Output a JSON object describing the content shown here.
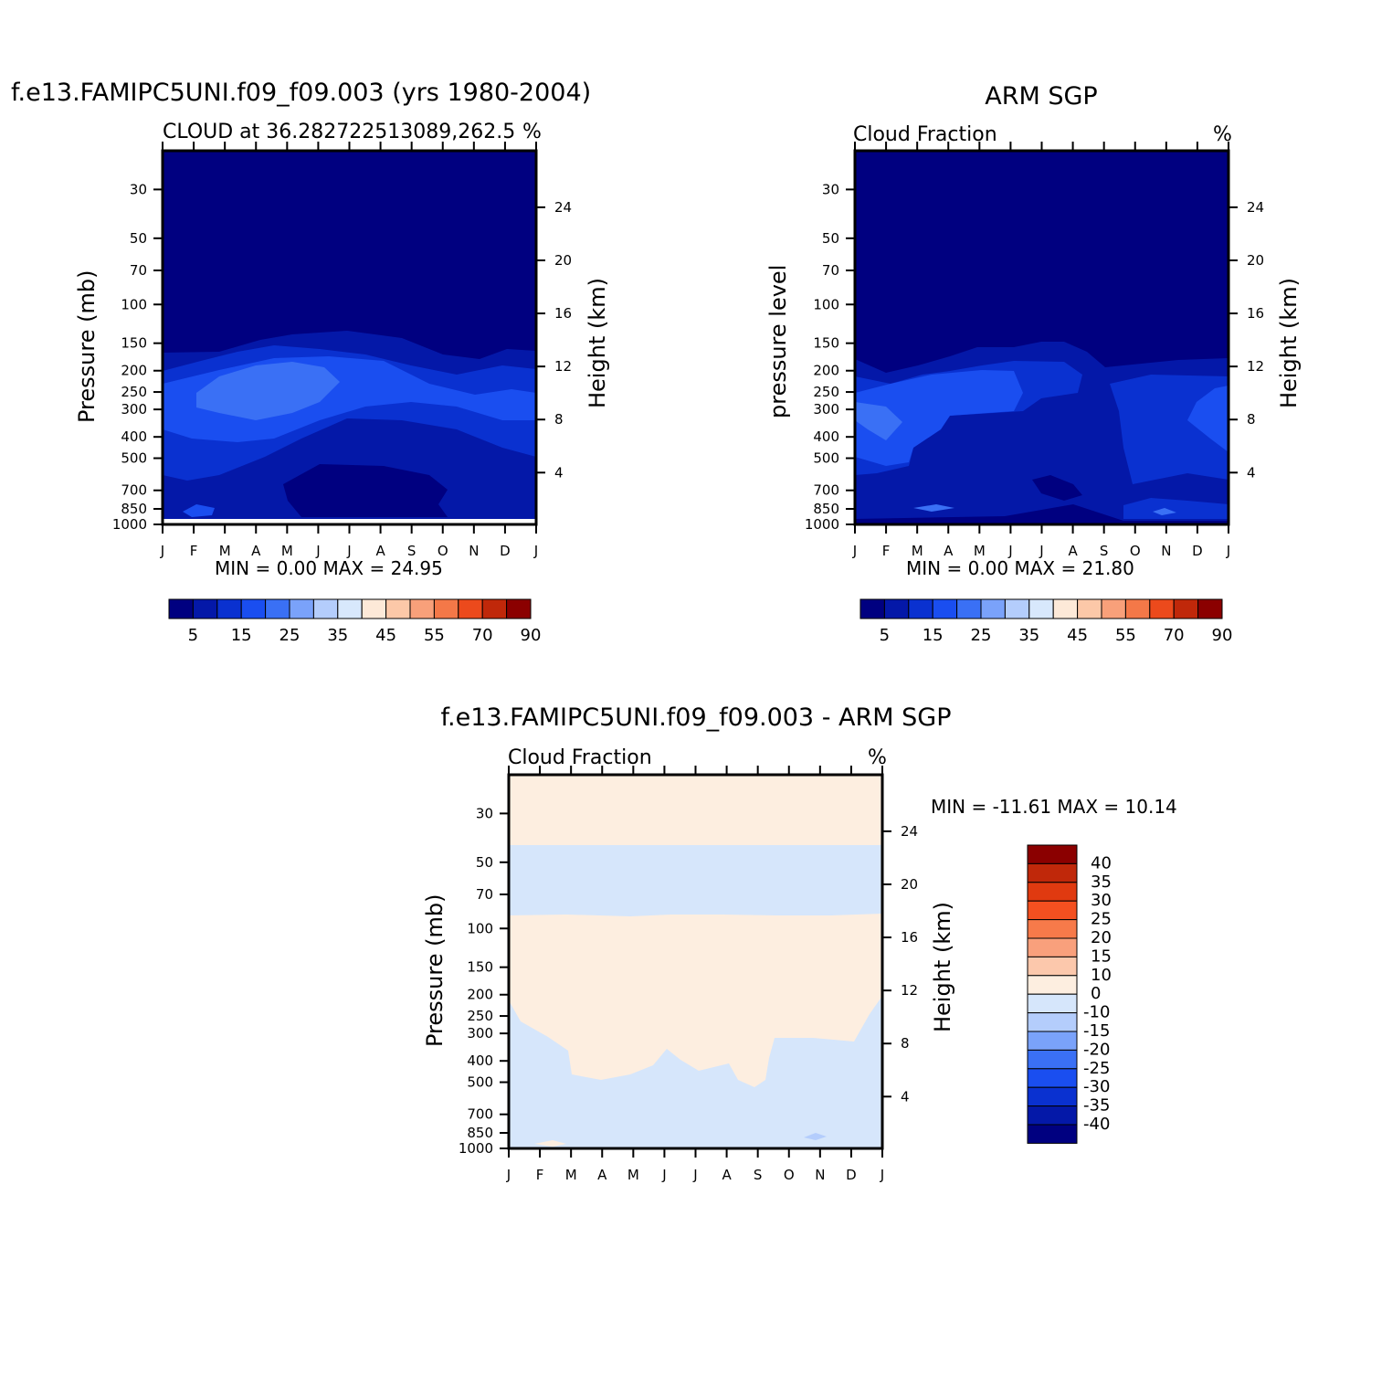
{
  "palette": [
    "#000080",
    "#0418a8",
    "#0a31d0",
    "#1a4ef0",
    "#3a70f5",
    "#7aa2fa",
    "#b4cdfc",
    "#d8e8fc",
    "#fde9d8",
    "#fcc8a8",
    "#f8a07a",
    "#f47848",
    "#ec4a1c",
    "#c0280a",
    "#8b0000"
  ],
  "chart_data": [
    {
      "id": "model",
      "type": "heatmap",
      "title": "f.e13.FAMIPC5UNI.f09_f09.003 (yrs 1980-2004)",
      "subtitle": "CLOUD at 36.282722513089,262.5",
      "units_label": "%",
      "ylabel": "Pressure  (mb)",
      "y2label": "Height  (km)",
      "x_ticks": [
        "J",
        "F",
        "M",
        "A",
        "M",
        "J",
        "J",
        "A",
        "S",
        "O",
        "N",
        "D",
        "J"
      ],
      "y_ticks": [
        30,
        50,
        70,
        100,
        150,
        200,
        250,
        300,
        400,
        500,
        700,
        850,
        1000
      ],
      "y2_ticks": [
        4,
        8,
        12,
        16,
        20,
        24
      ],
      "ylim": [
        1000,
        20
      ],
      "stats": "MIN =    0.00  MAX =   24.95",
      "colorbar_levels": [
        5,
        10,
        15,
        20,
        25,
        30,
        35,
        40,
        45,
        50,
        55,
        60,
        70,
        80,
        90
      ],
      "colorbar_labels": [
        "5",
        "15",
        "25",
        "35",
        "45",
        "55",
        "70",
        "90"
      ],
      "approx_layers": [
        {
          "label": "0-5",
          "color_index": 0
        },
        {
          "label": "5-10",
          "color_index": 1
        },
        {
          "label": "10-15",
          "color_index": 2
        },
        {
          "label": "15-20",
          "color_index": 3
        },
        {
          "label": "20-25",
          "color_index": 4
        }
      ]
    },
    {
      "id": "obs",
      "type": "heatmap",
      "title": "ARM SGP",
      "subtitle": "Cloud Fraction",
      "units_label": "%",
      "ylabel": "pressure  level",
      "y2label": "Height  (km)",
      "x_ticks": [
        "J",
        "F",
        "M",
        "A",
        "M",
        "J",
        "J",
        "A",
        "S",
        "O",
        "N",
        "D",
        "J"
      ],
      "y_ticks": [
        30,
        50,
        70,
        100,
        150,
        200,
        250,
        300,
        400,
        500,
        700,
        850,
        1000
      ],
      "y2_ticks": [
        4,
        8,
        12,
        16,
        20,
        24
      ],
      "ylim": [
        1000,
        20
      ],
      "stats": "MIN =    0.00  MAX =   21.80",
      "colorbar_levels": [
        5,
        10,
        15,
        20,
        25,
        30,
        35,
        40,
        45,
        50,
        55,
        60,
        70,
        80,
        90
      ],
      "colorbar_labels": [
        "5",
        "15",
        "25",
        "35",
        "45",
        "55",
        "70",
        "90"
      ]
    },
    {
      "id": "diff",
      "type": "heatmap",
      "title": "f.e13.FAMIPC5UNI.f09_f09.003 - ARM SGP",
      "subtitle": "Cloud Fraction",
      "units_label": "%",
      "ylabel": "Pressure  (mb)",
      "y2label": "Height  (km)",
      "x_ticks": [
        "J",
        "F",
        "M",
        "A",
        "M",
        "J",
        "J",
        "A",
        "S",
        "O",
        "N",
        "D",
        "J"
      ],
      "y_ticks": [
        30,
        50,
        70,
        100,
        150,
        200,
        250,
        300,
        400,
        500,
        700,
        850,
        1000
      ],
      "y2_ticks": [
        4,
        8,
        12,
        16,
        20,
        24
      ],
      "ylim": [
        1000,
        20
      ],
      "stats": "MIN = -11.61  MAX =   10.14",
      "colorbar_labels": [
        "40",
        "35",
        "30",
        "25",
        "20",
        "15",
        "10",
        "0",
        "-10",
        "-15",
        "-20",
        "-25",
        "-30",
        "-35",
        "-40"
      ],
      "colorbar_colors": [
        "#8b0000",
        "#c0280a",
        "#e03a10",
        "#f45020",
        "#f77a4a",
        "#f9a07c",
        "#fcc8ac",
        "#fdeee0",
        "#d6e6fb",
        "#b4cdfc",
        "#7aa2fa",
        "#3a70f5",
        "#1a4ef0",
        "#0a31d0",
        "#0418a8",
        "#000080"
      ]
    }
  ]
}
